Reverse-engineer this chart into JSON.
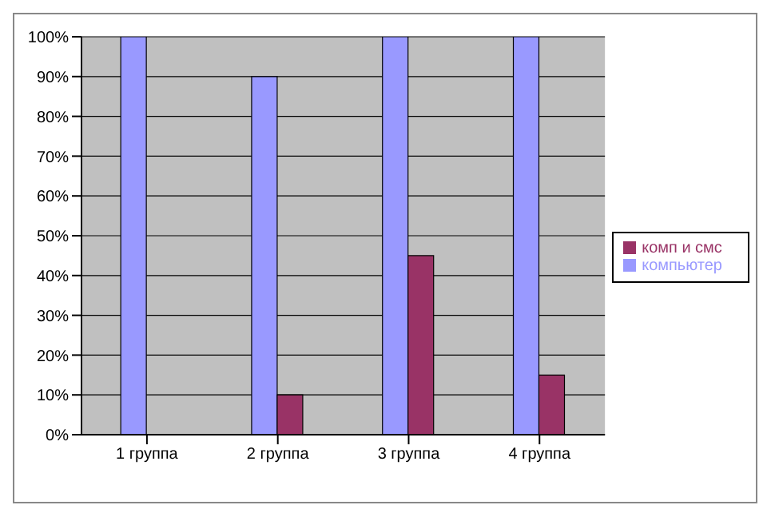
{
  "chart_data": {
    "type": "bar",
    "categories": [
      "1 группа",
      "2 группа",
      "3 группа",
      "4 группа"
    ],
    "series": [
      {
        "name": "компьютер",
        "color": "#9999ff",
        "values": [
          100,
          90,
          100,
          100
        ]
      },
      {
        "name": "комп и смс",
        "color": "#993366",
        "values": [
          0,
          10,
          45,
          15
        ]
      }
    ],
    "ylim": [
      0,
      100
    ],
    "yticks": [
      {
        "value": 0,
        "label": "0%"
      },
      {
        "value": 10,
        "label": "10%"
      },
      {
        "value": 20,
        "label": "20%"
      },
      {
        "value": 30,
        "label": "30%"
      },
      {
        "value": 40,
        "label": "40%"
      },
      {
        "value": 50,
        "label": "50%"
      },
      {
        "value": 60,
        "label": "60%"
      },
      {
        "value": 70,
        "label": "70%"
      },
      {
        "value": 80,
        "label": "80%"
      },
      {
        "value": 90,
        "label": "90%"
      },
      {
        "value": 100,
        "label": "100%"
      }
    ],
    "grid": "y",
    "legend": "right"
  }
}
